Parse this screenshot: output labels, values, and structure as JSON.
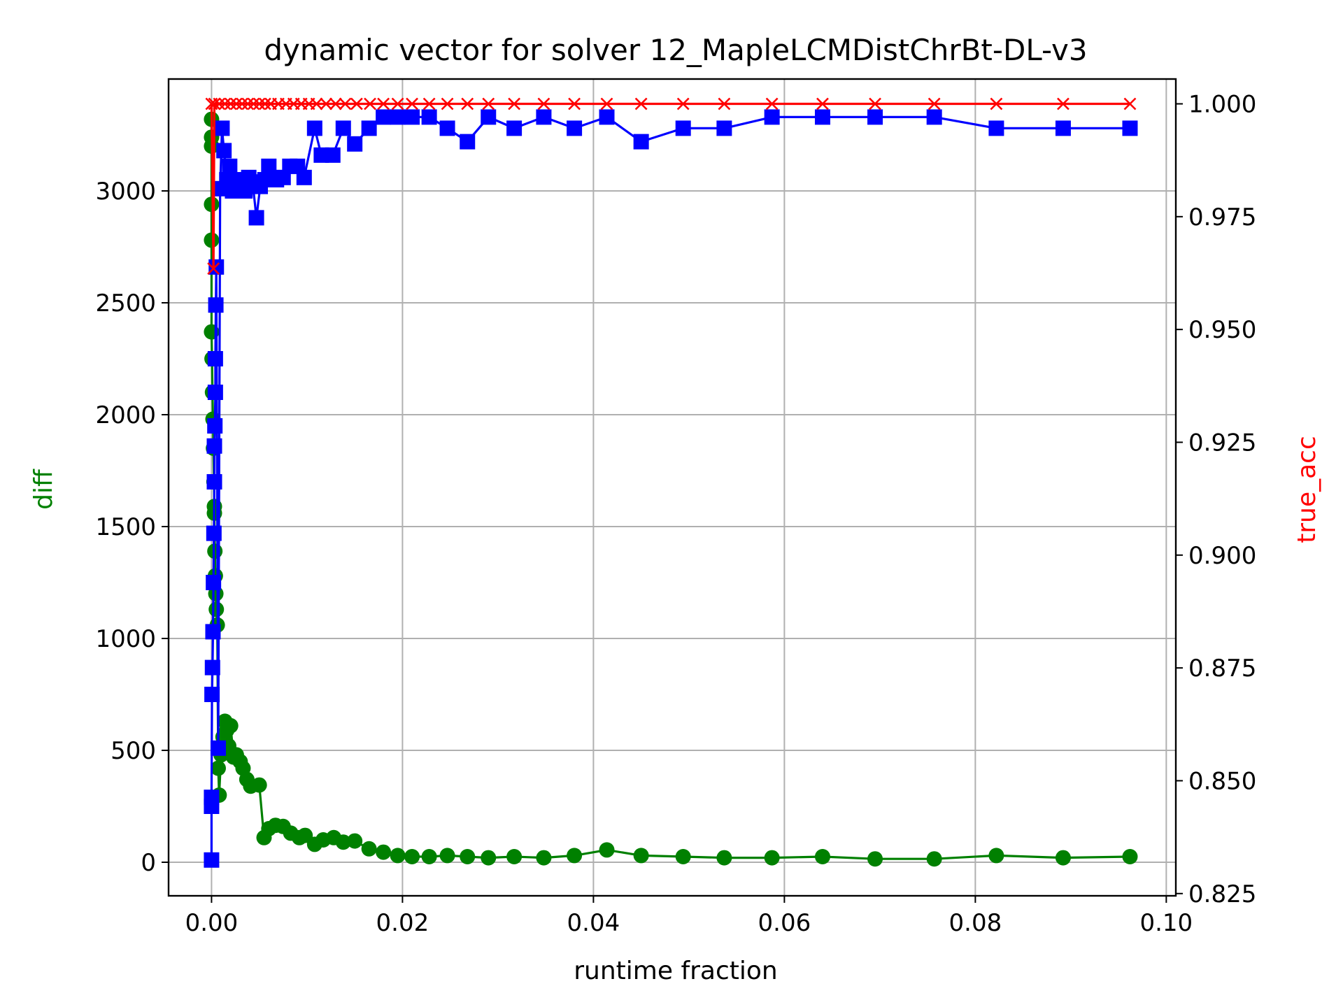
{
  "chart_data": {
    "type": "line",
    "title": "dynamic vector for solver 12_MapleLCMDistChrBt-DL-v3",
    "xlabel": "runtime fraction",
    "ylabel_left": "diff",
    "ylabel_right": "true_acc",
    "xlim": [
      -0.0045,
      0.101
    ],
    "ylim_left": [
      -150,
      3500
    ],
    "ylim_right": [
      0.8245,
      1.0055
    ],
    "x_ticks": [
      0.0,
      0.02,
      0.04,
      0.06,
      0.08,
      0.1
    ],
    "x_tick_labels": [
      "0.00",
      "0.02",
      "0.04",
      "0.06",
      "0.08",
      "0.10"
    ],
    "y_left_ticks": [
      0,
      500,
      1000,
      1500,
      2000,
      2500,
      3000
    ],
    "y_left_tick_labels": [
      "0",
      "500",
      "1000",
      "1500",
      "2000",
      "2500",
      "3000"
    ],
    "y_right_ticks": [
      0.825,
      0.85,
      0.875,
      0.9,
      0.925,
      0.95,
      0.975,
      1.0
    ],
    "y_right_tick_labels": [
      "0.825",
      "0.850",
      "0.875",
      "0.900",
      "0.925",
      "0.950",
      "0.975",
      "1.000"
    ],
    "grid": true,
    "colors": {
      "diff": "#008000",
      "blue_series": "#0000ff",
      "true_acc": "#ff0000",
      "grid": "#b0b0b0",
      "left_label": "#008000",
      "right_label": "#ff0000"
    },
    "series": [
      {
        "axis": "left",
        "marker": "circle",
        "color": "#008000",
        "points": [
          [
            0.0,
            3320
          ],
          [
            0.0,
            3240
          ],
          [
            0.0,
            3200
          ],
          [
            0.0,
            2940
          ],
          [
            0.0,
            2780
          ],
          [
            0.0,
            2370
          ],
          [
            5e-05,
            2250
          ],
          [
            0.0001,
            2100
          ],
          [
            0.00015,
            1980
          ],
          [
            0.0002,
            1850
          ],
          [
            0.00025,
            1700
          ],
          [
            0.0003,
            1590
          ],
          [
            0.0003,
            1560
          ],
          [
            0.00035,
            1390
          ],
          [
            0.0004,
            1280
          ],
          [
            0.00045,
            1200
          ],
          [
            0.0005,
            1130
          ],
          [
            0.0006,
            1060
          ],
          [
            0.0007,
            420
          ],
          [
            0.0008,
            300
          ],
          [
            0.001,
            480
          ],
          [
            0.0012,
            560
          ],
          [
            0.0014,
            630
          ],
          [
            0.0016,
            590
          ],
          [
            0.0018,
            520
          ],
          [
            0.002,
            610
          ],
          [
            0.0023,
            470
          ],
          [
            0.0026,
            480
          ],
          [
            0.003,
            450
          ],
          [
            0.0033,
            420
          ],
          [
            0.0037,
            370
          ],
          [
            0.0041,
            340
          ],
          [
            0.005,
            345
          ],
          [
            0.0055,
            110
          ],
          [
            0.006,
            150
          ],
          [
            0.0067,
            165
          ],
          [
            0.0075,
            160
          ],
          [
            0.0083,
            130
          ],
          [
            0.0092,
            110
          ],
          [
            0.0098,
            120
          ],
          [
            0.0108,
            80
          ],
          [
            0.0117,
            100
          ],
          [
            0.0128,
            110
          ],
          [
            0.0138,
            90
          ],
          [
            0.015,
            95
          ],
          [
            0.0165,
            60
          ],
          [
            0.018,
            45
          ],
          [
            0.0195,
            30
          ],
          [
            0.021,
            25
          ],
          [
            0.0228,
            25
          ],
          [
            0.0247,
            30
          ],
          [
            0.0268,
            25
          ],
          [
            0.029,
            20
          ],
          [
            0.0317,
            25
          ],
          [
            0.0348,
            20
          ],
          [
            0.038,
            30
          ],
          [
            0.0414,
            55
          ],
          [
            0.045,
            30
          ],
          [
            0.0494,
            25
          ],
          [
            0.0537,
            20
          ],
          [
            0.0587,
            20
          ],
          [
            0.064,
            25
          ],
          [
            0.0695,
            15
          ],
          [
            0.0757,
            15
          ],
          [
            0.0822,
            30
          ],
          [
            0.0892,
            20
          ],
          [
            0.0962,
            25
          ]
        ]
      },
      {
        "axis": "left",
        "marker": "square",
        "color": "#0000ff",
        "points": [
          [
            0.0,
            10
          ],
          [
            0.0,
            250
          ],
          [
            0.0,
            290
          ],
          [
            5e-05,
            750
          ],
          [
            0.0001,
            870
          ],
          [
            0.00015,
            1030
          ],
          [
            0.0002,
            1250
          ],
          [
            0.00025,
            1470
          ],
          [
            0.0003,
            1700
          ],
          [
            0.0003,
            1860
          ],
          [
            0.00035,
            1950
          ],
          [
            0.0004,
            2100
          ],
          [
            0.0004,
            2250
          ],
          [
            0.00045,
            2490
          ],
          [
            0.0005,
            2660
          ],
          [
            0.0007,
            510
          ],
          [
            0.0009,
            3010
          ],
          [
            0.0011,
            3280
          ],
          [
            0.0013,
            3180
          ],
          [
            0.0016,
            3050
          ],
          [
            0.0019,
            3110
          ],
          [
            0.0022,
            3000
          ],
          [
            0.0026,
            3050
          ],
          [
            0.003,
            3040
          ],
          [
            0.0035,
            3000
          ],
          [
            0.0039,
            3060
          ],
          [
            0.0043,
            3040
          ],
          [
            0.0047,
            2880
          ],
          [
            0.0051,
            3020
          ],
          [
            0.0056,
            3050
          ],
          [
            0.006,
            3110
          ],
          [
            0.0068,
            3050
          ],
          [
            0.0075,
            3060
          ],
          [
            0.0082,
            3110
          ],
          [
            0.009,
            3110
          ],
          [
            0.0097,
            3060
          ],
          [
            0.0108,
            3280
          ],
          [
            0.0115,
            3160
          ],
          [
            0.0127,
            3160
          ],
          [
            0.0138,
            3280
          ],
          [
            0.015,
            3210
          ],
          [
            0.0165,
            3280
          ],
          [
            0.018,
            3330
          ],
          [
            0.0195,
            3330
          ],
          [
            0.021,
            3330
          ],
          [
            0.0228,
            3330
          ],
          [
            0.0247,
            3280
          ],
          [
            0.0268,
            3220
          ],
          [
            0.029,
            3330
          ],
          [
            0.0317,
            3280
          ],
          [
            0.0348,
            3330
          ],
          [
            0.038,
            3280
          ],
          [
            0.0414,
            3330
          ],
          [
            0.045,
            3220
          ],
          [
            0.0494,
            3280
          ],
          [
            0.0537,
            3280
          ],
          [
            0.0587,
            3330
          ],
          [
            0.064,
            3330
          ],
          [
            0.0695,
            3330
          ],
          [
            0.0757,
            3330
          ],
          [
            0.0822,
            3280
          ],
          [
            0.0892,
            3280
          ],
          [
            0.0962,
            3280
          ]
        ]
      },
      {
        "axis": "right",
        "marker": "x",
        "color": "#ff0000",
        "points": [
          [
            0.0,
            1.0
          ],
          [
            0.0002,
            0.9635
          ],
          [
            0.0003,
            1.0
          ],
          [
            0.0008,
            1.0
          ],
          [
            0.0014,
            1.0
          ],
          [
            0.002,
            1.0
          ],
          [
            0.0026,
            1.0
          ],
          [
            0.0032,
            1.0
          ],
          [
            0.0038,
            1.0
          ],
          [
            0.0044,
            1.0
          ],
          [
            0.005,
            1.0
          ],
          [
            0.0056,
            1.0
          ],
          [
            0.0062,
            1.0
          ],
          [
            0.007,
            1.0
          ],
          [
            0.0078,
            1.0
          ],
          [
            0.0086,
            1.0
          ],
          [
            0.0094,
            1.0
          ],
          [
            0.0102,
            1.0
          ],
          [
            0.011,
            1.0
          ],
          [
            0.012,
            1.0
          ],
          [
            0.013,
            1.0
          ],
          [
            0.014,
            1.0
          ],
          [
            0.0152,
            1.0
          ],
          [
            0.0166,
            1.0
          ],
          [
            0.018,
            1.0
          ],
          [
            0.0195,
            1.0
          ],
          [
            0.021,
            1.0
          ],
          [
            0.0228,
            1.0
          ],
          [
            0.0247,
            1.0
          ],
          [
            0.0268,
            1.0
          ],
          [
            0.029,
            1.0
          ],
          [
            0.0317,
            1.0
          ],
          [
            0.0348,
            1.0
          ],
          [
            0.038,
            1.0
          ],
          [
            0.0414,
            1.0
          ],
          [
            0.045,
            1.0
          ],
          [
            0.0494,
            1.0
          ],
          [
            0.0537,
            1.0
          ],
          [
            0.0587,
            1.0
          ],
          [
            0.064,
            1.0
          ],
          [
            0.0695,
            1.0
          ],
          [
            0.0757,
            1.0
          ],
          [
            0.0822,
            1.0
          ],
          [
            0.0892,
            1.0
          ],
          [
            0.0962,
            1.0
          ]
        ]
      }
    ]
  }
}
